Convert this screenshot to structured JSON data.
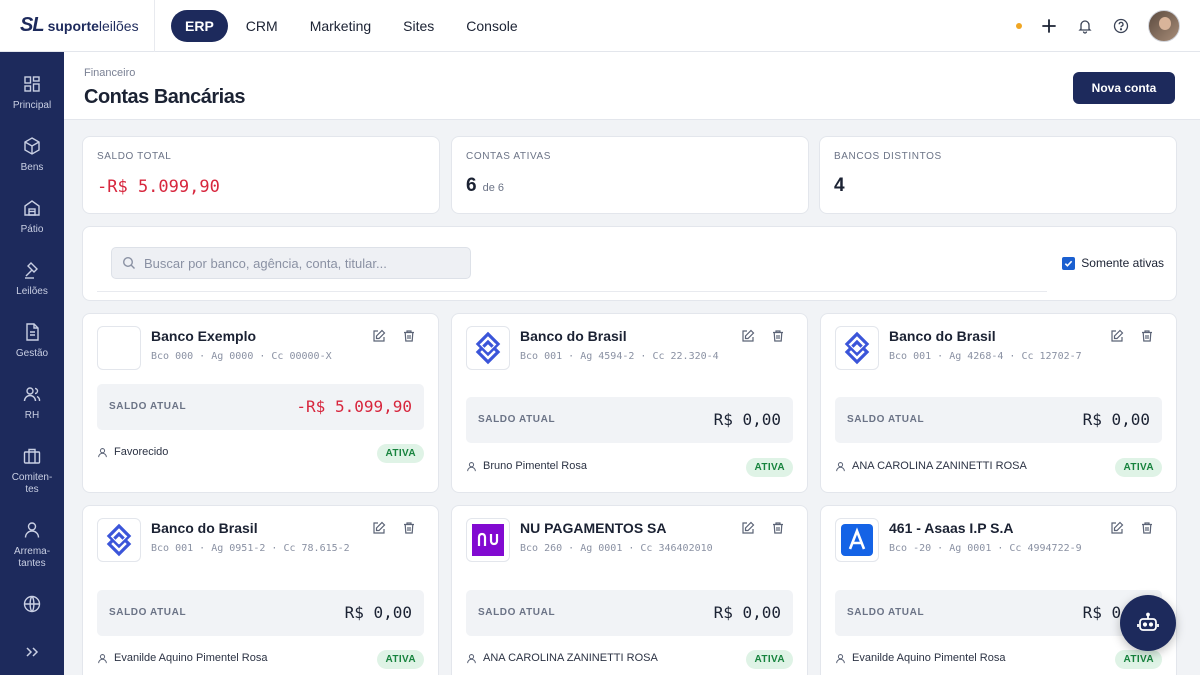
{
  "brand": {
    "mark": "SL",
    "name_bold": "suporte",
    "name_light": "leilões"
  },
  "nav": [
    "ERP",
    "CRM",
    "Marketing",
    "Sites",
    "Console"
  ],
  "sidebar": [
    "Principal",
    "Bens",
    "Pátio",
    "Leilões",
    "Gestão",
    "RH",
    "Comiten-tes",
    "Arrema-tantes"
  ],
  "header": {
    "breadcrumb": "Financeiro",
    "title": "Contas Bancárias",
    "new_button": "Nova conta"
  },
  "stats": {
    "total": {
      "label": "SALDO TOTAL",
      "value": "-R$ 5.099,90"
    },
    "active": {
      "label": "CONTAS ATIVAS",
      "value": "6",
      "sub": "de 6"
    },
    "banks": {
      "label": "BANCOS DISTINTOS",
      "value": "4"
    }
  },
  "filter": {
    "search_placeholder": "Buscar por banco, agência, conta, titular...",
    "only_active_label": "Somente ativas"
  },
  "accounts": [
    {
      "bank": "Banco Exemplo",
      "meta": "Bco 000 · Ag 0000 · Cc 00000-X",
      "balance_label": "SALDO ATUAL",
      "balance": "-R$ 5.099,90",
      "holder": "Favorecido",
      "status": "ATIVA"
    },
    {
      "bank": "Banco do Brasil",
      "meta": "Bco 001 · Ag 4594-2 · Cc 22.320-4",
      "balance_label": "SALDO ATUAL",
      "balance": "R$ 0,00",
      "holder": "Bruno Pimentel Rosa",
      "status": "ATIVA"
    },
    {
      "bank": "Banco do Brasil",
      "meta": "Bco 001 · Ag 4268-4 · Cc 12702-7",
      "balance_label": "SALDO ATUAL",
      "balance": "R$ 0,00",
      "holder": "ANA CAROLINA ZANINETTI ROSA",
      "status": "ATIVA"
    },
    {
      "bank": "Banco do Brasil",
      "meta": "Bco 001 · Ag 0951-2 · Cc 78.615-2",
      "balance_label": "SALDO ATUAL",
      "balance": "R$ 0,00",
      "holder": "Evanilde Aquino Pimentel Rosa",
      "status": "ATIVA"
    },
    {
      "bank": "NU PAGAMENTOS SA",
      "meta": "Bco 260 · Ag 0001 · Cc 346402010",
      "balance_label": "SALDO ATUAL",
      "balance": "R$ 0,00",
      "holder": "ANA CAROLINA ZANINETTI ROSA",
      "status": "ATIVA"
    },
    {
      "bank": "461 - Asaas I.P S.A",
      "meta": "Bco -20 · Ag 0001 · Cc 4994722-9",
      "balance_label": "SALDO ATUAL",
      "balance": "R$ 0,00",
      "holder": "Evanilde Aquino Pimentel Rosa",
      "status": "ATIVA"
    }
  ],
  "colors": {
    "navy": "#1d2a5c",
    "negative": "#d7263d",
    "active_badge_bg": "#dff3e6",
    "active_badge_text": "#16833d",
    "notification_dot": "#f0a623"
  }
}
